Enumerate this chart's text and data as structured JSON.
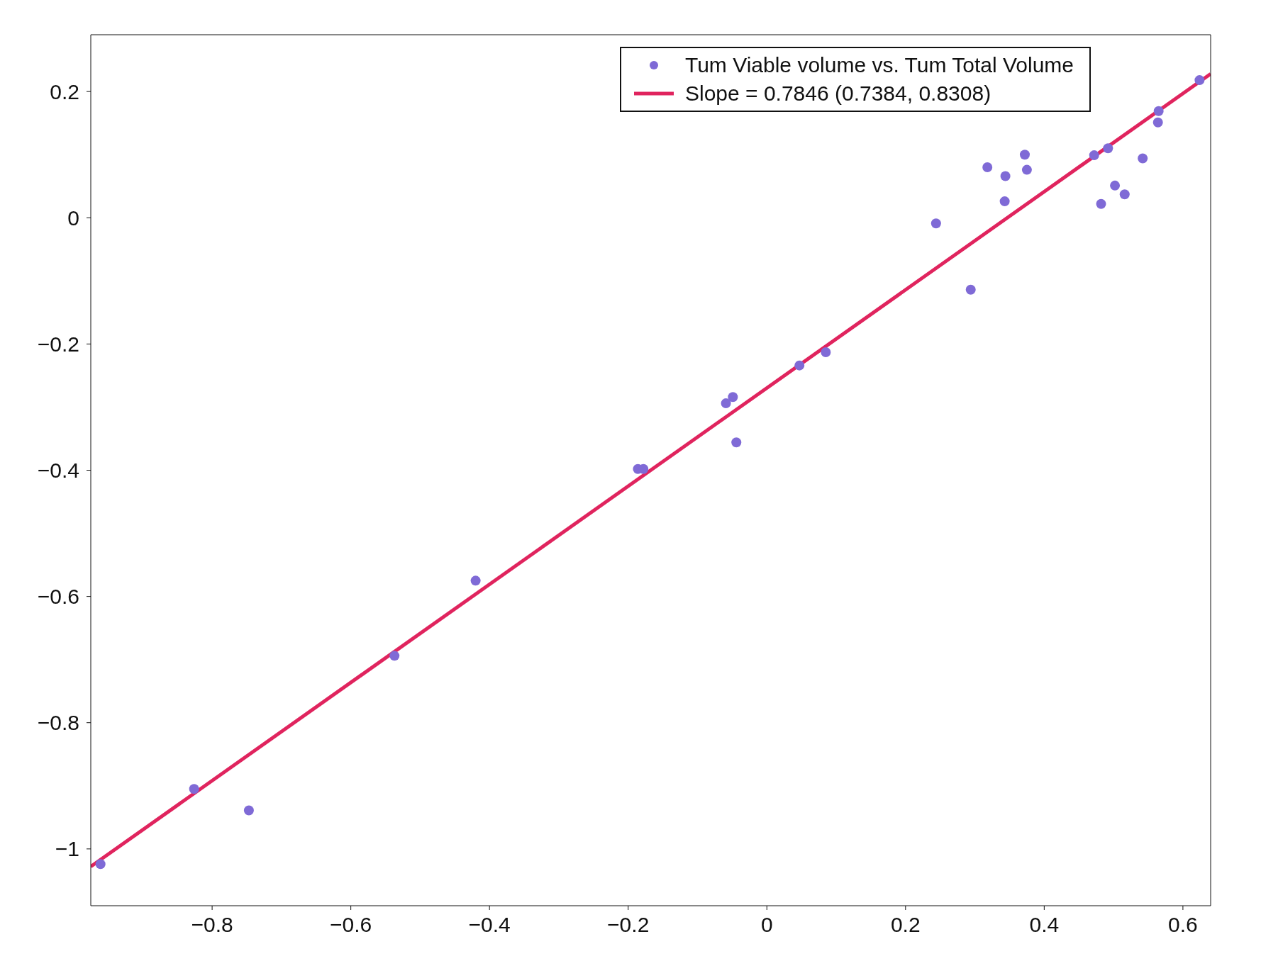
{
  "chart_data": {
    "type": "scatter",
    "xlim": [
      -0.975,
      0.64
    ],
    "ylim": [
      -1.09,
      0.29
    ],
    "xticks": [
      -0.8,
      -0.6,
      -0.4,
      -0.2,
      0,
      0.2,
      0.4,
      0.6
    ],
    "yticks": [
      -1,
      -0.8,
      -0.6,
      -0.4,
      -0.2,
      0,
      0.2
    ],
    "grid": false,
    "legend": "top right",
    "series": [
      {
        "name": "Tum Viable volume vs. Tum Total Volume",
        "color": "#7f6ad6",
        "marker": "circle",
        "x": [
          -0.961,
          -0.826,
          -0.747,
          -0.537,
          -0.42,
          -0.186,
          -0.178,
          -0.059,
          -0.049,
          -0.044,
          0.047,
          0.085,
          0.244,
          0.294,
          0.318,
          0.343,
          0.344,
          0.372,
          0.375,
          0.472,
          0.482,
          0.492,
          0.502,
          0.516,
          0.542,
          0.564,
          0.565,
          0.624
        ],
        "values": [
          -1.024,
          -0.905,
          -0.939,
          -0.694,
          -0.575,
          -0.398,
          -0.398,
          -0.294,
          -0.284,
          -0.356,
          -0.234,
          -0.213,
          -0.009,
          -0.114,
          0.08,
          0.026,
          0.066,
          0.1,
          0.076,
          0.099,
          0.022,
          0.11,
          0.051,
          0.037,
          0.094,
          0.151,
          0.169,
          0.218
        ]
      },
      {
        "name": "Slope = 0.7846 (0.7384, 0.8308)",
        "type": "line",
        "color": "#e0245e",
        "line_style": "solid",
        "x": [
          -0.975,
          0.64
        ],
        "values": [
          -1.028,
          0.228
        ]
      }
    ]
  }
}
